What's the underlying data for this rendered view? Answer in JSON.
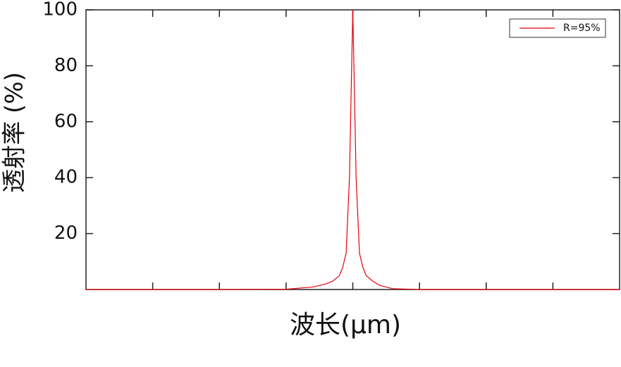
{
  "chart_data": {
    "type": "line",
    "x_label": "波长(μm)",
    "y_label": "透射率 (%)",
    "x": [
      0,
      1,
      2,
      3,
      3.4,
      3.6,
      3.7,
      3.8,
      3.85,
      3.9,
      3.95,
      4,
      4.05,
      4.1,
      4.15,
      4.2,
      4.3,
      4.4,
      4.6,
      5,
      6,
      7,
      8
    ],
    "series": [
      {
        "name": "R=95%",
        "color": "#e8000b",
        "values": [
          0,
          0,
          0,
          0.1,
          0.9,
          2,
          3,
          5,
          8,
          13,
          40,
          100,
          40,
          13,
          8,
          5,
          3,
          1.5,
          0.3,
          0,
          0,
          0,
          0
        ]
      }
    ],
    "xlim": [
      0,
      8
    ],
    "ylim": [
      0,
      100
    ],
    "yticks": [
      20,
      40,
      60,
      80,
      100
    ],
    "legend": "upper right",
    "grid": false
  }
}
